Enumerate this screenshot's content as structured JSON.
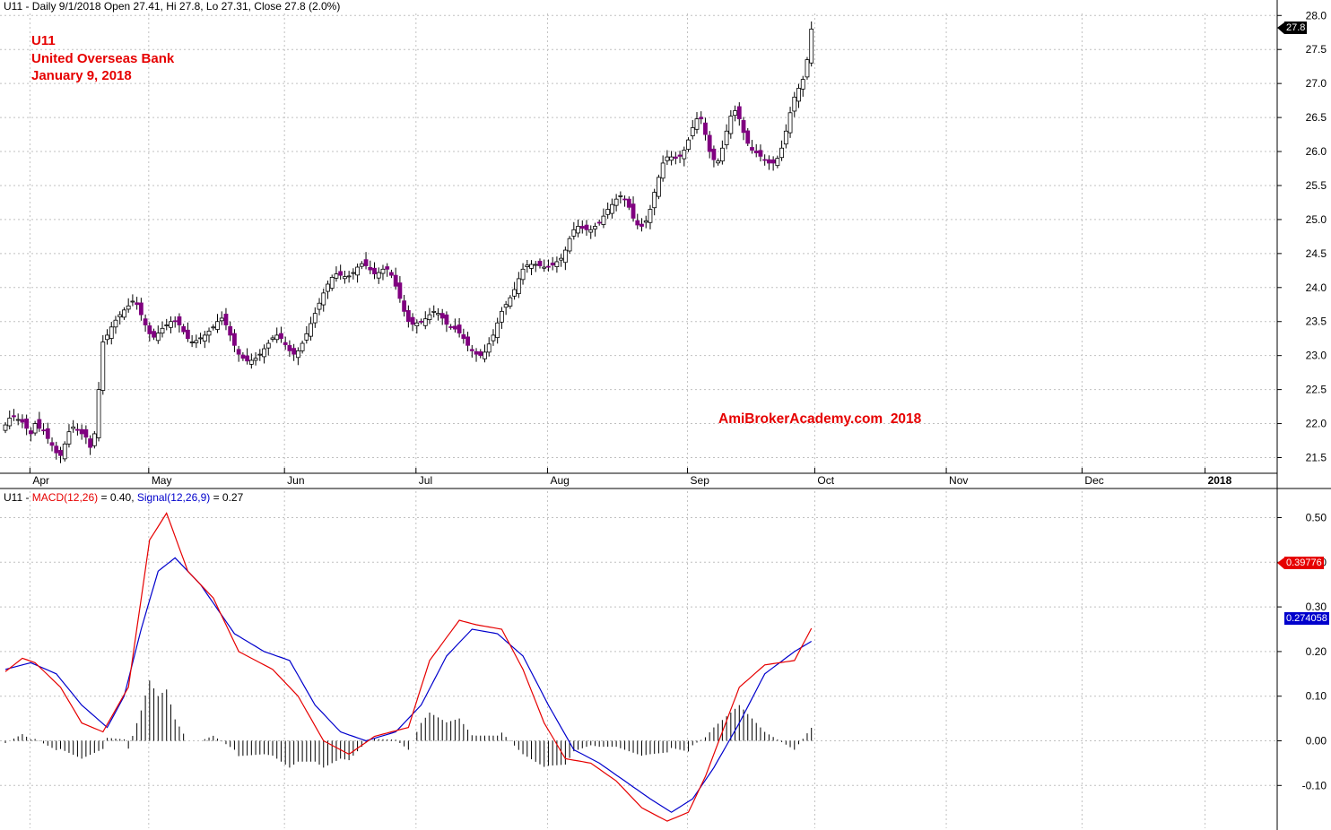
{
  "header": {
    "symbol": "U11",
    "info": "U11 - Daily 9/1/2018 Open 27.41, Hi 27.8, Lo 27.31, Close 27.8 (2.0%)"
  },
  "title_lines": [
    "U11",
    "United Overseas Bank",
    "January 9, 2018"
  ],
  "watermark": "AmiBrokerAcademy.com  2018",
  "price_tag": "27.8",
  "macd_header": {
    "prefix": "U11 - ",
    "macd_label": "MACD(12,26)",
    "macd_value": " = 0.40, ",
    "signal_label": "Signal(12,26,9)",
    "signal_value": " = 0.27"
  },
  "macd_tag": "0.39776",
  "signal_tag": "0.274058",
  "colors": {
    "up_candle": "#ffffff",
    "down_candle": "#800080",
    "macd": "#e60000",
    "signal": "#0000cc",
    "grid": "#c0c0c0"
  },
  "chart_data": [
    {
      "type": "candlestick",
      "ylim": [
        21.2,
        28.1
      ],
      "y_ticks": [
        "21.5",
        "22.0",
        "22.5",
        "23.0",
        "23.5",
        "24.0",
        "24.5",
        "25.0",
        "25.5",
        "26.0",
        "26.5",
        "27.0",
        "27.5",
        "28.0"
      ],
      "x_ticks": [
        "Apr",
        "May",
        "Jun",
        "Jul",
        "Aug",
        "Sep",
        "Oct",
        "Nov",
        "Dec",
        "2018"
      ],
      "x_tick_bars": [
        6,
        34,
        66,
        97,
        128,
        161,
        191,
        222,
        254,
        283
      ],
      "close": [
        21.98,
        22.08,
        22.1,
        22.06,
        22.02,
        21.93,
        21.85,
        22.0,
        21.93,
        21.9,
        21.78,
        21.68,
        21.57,
        21.53,
        21.7,
        21.88,
        21.95,
        21.9,
        21.85,
        21.8,
        21.65,
        21.85,
        22.5,
        23.2,
        23.3,
        23.42,
        23.52,
        23.6,
        23.67,
        23.73,
        23.8,
        23.75,
        23.6,
        23.45,
        23.32,
        23.27,
        23.33,
        23.4,
        23.45,
        23.5,
        23.51,
        23.45,
        23.35,
        23.25,
        23.2,
        23.22,
        23.26,
        23.3,
        23.36,
        23.42,
        23.5,
        23.55,
        23.45,
        23.3,
        23.15,
        23.02,
        22.96,
        22.92,
        22.93,
        22.96,
        23.02,
        23.1,
        23.18,
        23.26,
        23.3,
        23.25,
        23.16,
        23.07,
        23.02,
        23.07,
        23.18,
        23.32,
        23.47,
        23.62,
        23.77,
        23.92,
        24.05,
        24.15,
        24.2,
        24.18,
        24.16,
        24.17,
        24.22,
        24.3,
        24.35,
        24.32,
        24.26,
        24.2,
        24.22,
        24.27,
        24.27,
        24.18,
        24.02,
        23.84,
        23.65,
        23.5,
        23.46,
        23.48,
        23.5,
        23.54,
        23.6,
        23.65,
        23.62,
        23.55,
        23.46,
        23.42,
        23.39,
        23.33,
        23.25,
        23.15,
        23.07,
        23.02,
        23.0,
        23.05,
        23.17,
        23.3,
        23.48,
        23.65,
        23.75,
        23.85,
        23.97,
        24.13,
        24.27,
        24.33,
        24.34,
        24.34,
        24.32,
        24.3,
        24.3,
        24.33,
        24.38,
        24.43,
        24.55,
        24.72,
        24.85,
        24.9,
        24.87,
        24.85,
        24.85,
        24.9,
        24.95,
        25.05,
        25.15,
        25.22,
        25.3,
        25.35,
        25.3,
        25.18,
        25.02,
        24.92,
        24.9,
        24.98,
        25.15,
        25.4,
        25.62,
        25.83,
        25.92,
        25.92,
        25.9,
        25.93,
        26.02,
        26.17,
        26.35,
        26.48,
        26.48,
        26.25,
        26.0,
        25.88,
        25.86,
        26.05,
        26.3,
        26.52,
        26.6,
        26.48,
        26.28,
        26.12,
        26.02,
        25.98,
        25.93,
        25.88,
        25.83,
        25.83,
        25.9,
        26.05,
        26.3,
        26.57,
        26.8,
        26.93,
        27.06,
        27.35,
        27.8
      ],
      "last_close": 27.8
    },
    {
      "type": "line",
      "title": "MACD(12,26) / Signal(12,26,9)",
      "ylim": [
        -0.2,
        0.52
      ],
      "y_ticks": [
        "-0.10",
        "0.00",
        "0.10",
        "0.20",
        "0.30",
        "0.40",
        "0.50"
      ],
      "series": [
        {
          "name": "MACD(12,26)",
          "color": "#e60000",
          "anchors": [
            [
              0,
              0.155
            ],
            [
              4,
              0.185
            ],
            [
              7,
              0.175
            ],
            [
              13,
              0.12
            ],
            [
              18,
              0.04
            ],
            [
              23,
              0.02
            ],
            [
              29,
              0.12
            ],
            [
              34,
              0.45
            ],
            [
              38,
              0.51
            ],
            [
              43,
              0.38
            ],
            [
              49,
              0.32
            ],
            [
              55,
              0.2
            ],
            [
              63,
              0.16
            ],
            [
              69,
              0.1
            ],
            [
              75,
              0.0
            ],
            [
              81,
              -0.03
            ],
            [
              87,
              0.01
            ],
            [
              95,
              0.03
            ],
            [
              100,
              0.18
            ],
            [
              107,
              0.27
            ],
            [
              111,
              0.26
            ],
            [
              117,
              0.25
            ],
            [
              122,
              0.16
            ],
            [
              127,
              0.04
            ],
            [
              132,
              -0.04
            ],
            [
              138,
              -0.05
            ],
            [
              144,
              -0.09
            ],
            [
              150,
              -0.15
            ],
            [
              156,
              -0.18
            ],
            [
              161,
              -0.16
            ],
            [
              165,
              -0.08
            ],
            [
              173,
              0.12
            ],
            [
              179,
              0.17
            ],
            [
              186,
              0.18
            ],
            [
              191,
              0.27
            ],
            [
              197,
              0.27
            ],
            [
              203,
              0.32
            ],
            [
              208,
              0.23
            ],
            [
              214,
              0.32
            ],
            [
              220,
              0.38
            ],
            [
              224,
              0.44
            ],
            [
              229,
              0.36
            ],
            [
              232,
              0.38
            ],
            [
              238,
              0.21
            ],
            [
              241,
              0.13
            ],
            [
              245,
              0.15
            ],
            [
              250,
              0.28
            ],
            [
              255,
              0.398
            ]
          ]
        },
        {
          "name": "Signal(12,26,9)",
          "color": "#0000cc",
          "anchors": [
            [
              0,
              0.16
            ],
            [
              6,
              0.175
            ],
            [
              12,
              0.15
            ],
            [
              18,
              0.08
            ],
            [
              24,
              0.03
            ],
            [
              28,
              0.1
            ],
            [
              32,
              0.25
            ],
            [
              36,
              0.38
            ],
            [
              40,
              0.41
            ],
            [
              46,
              0.35
            ],
            [
              54,
              0.24
            ],
            [
              61,
              0.2
            ],
            [
              67,
              0.18
            ],
            [
              73,
              0.08
            ],
            [
              79,
              0.02
            ],
            [
              85,
              0.0
            ],
            [
              92,
              0.02
            ],
            [
              98,
              0.08
            ],
            [
              104,
              0.19
            ],
            [
              110,
              0.25
            ],
            [
              116,
              0.24
            ],
            [
              122,
              0.19
            ],
            [
              128,
              0.08
            ],
            [
              134,
              -0.02
            ],
            [
              140,
              -0.05
            ],
            [
              146,
              -0.09
            ],
            [
              152,
              -0.13
            ],
            [
              157,
              -0.16
            ],
            [
              162,
              -0.13
            ],
            [
              167,
              -0.06
            ],
            [
              173,
              0.04
            ],
            [
              179,
              0.15
            ],
            [
              186,
              0.2
            ],
            [
              193,
              0.24
            ],
            [
              199,
              0.26
            ],
            [
              204,
              0.29
            ],
            [
              209,
              0.26
            ],
            [
              215,
              0.33
            ],
            [
              221,
              0.38
            ],
            [
              226,
              0.42
            ],
            [
              231,
              0.38
            ],
            [
              236,
              0.34
            ],
            [
              240,
              0.28
            ],
            [
              244,
              0.2
            ],
            [
              248,
              0.17
            ],
            [
              252,
              0.22
            ],
            [
              255,
              0.274
            ]
          ]
        }
      ]
    }
  ]
}
